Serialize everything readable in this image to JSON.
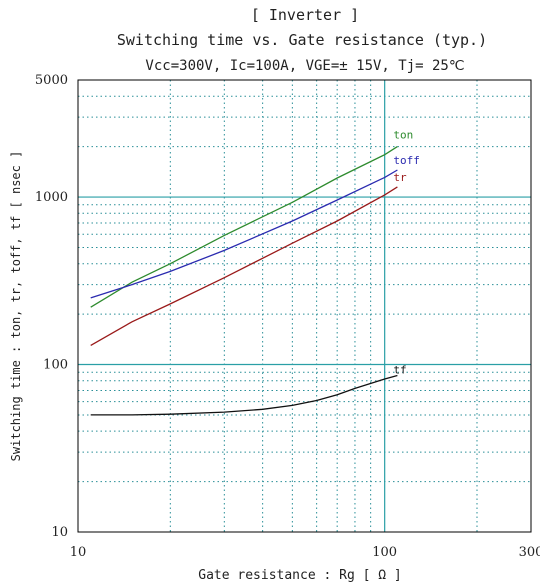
{
  "chart_data": {
    "type": "line",
    "title_lines": [
      "[ Inverter ]",
      "Switching time  vs.  Gate resistance  (typ.)",
      "Vcc=300V, Ic=100A, VGE=± 15V, Tj= 25℃"
    ],
    "xlabel": "Gate resistance  :  Rg  [ Ω  ]",
    "ylabel": "Switching time  :  ton, tr, toff, tf  [ nsec ]",
    "x_scale": "log",
    "y_scale": "log",
    "xlim": [
      10,
      300
    ],
    "ylim": [
      10,
      5000
    ],
    "x_ticks": [
      10,
      100,
      300
    ],
    "x_tick_labels": [
      "10",
      "100",
      "300"
    ],
    "y_ticks": [
      10,
      100,
      1000,
      5000
    ],
    "y_tick_labels": [
      "10",
      "100",
      "1000",
      "5000"
    ],
    "major_lines": {
      "x": [
        100
      ],
      "y": [
        100,
        1000
      ]
    },
    "grid": true,
    "series": [
      {
        "name": "ton",
        "color": "#2e8b2e",
        "x": [
          11,
          15,
          20,
          30,
          50,
          70,
          100,
          110
        ],
        "y": [
          220,
          310,
          400,
          590,
          930,
          1300,
          1790,
          2000
        ]
      },
      {
        "name": "toff",
        "color": "#2b2bb0",
        "x": [
          11,
          15,
          20,
          30,
          50,
          70,
          100,
          110
        ],
        "y": [
          250,
          300,
          360,
          480,
          720,
          960,
          1310,
          1450
        ]
      },
      {
        "name": "tr",
        "color": "#9a1a1a",
        "x": [
          11,
          15,
          20,
          30,
          50,
          70,
          100,
          110
        ],
        "y": [
          130,
          180,
          230,
          330,
          530,
          720,
          1030,
          1150
        ]
      },
      {
        "name": "tf",
        "color": "#111111",
        "x": [
          11,
          15,
          20,
          30,
          40,
          50,
          60,
          70,
          80,
          100,
          110
        ],
        "y": [
          50,
          50,
          50.5,
          52,
          54,
          57,
          61,
          66,
          72,
          82,
          86
        ]
      }
    ]
  }
}
